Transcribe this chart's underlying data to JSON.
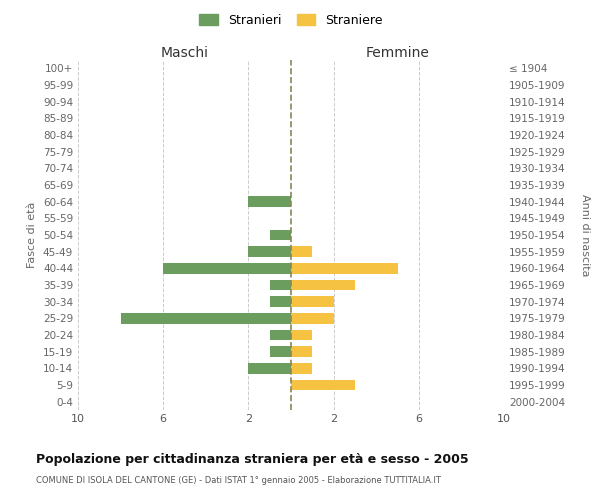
{
  "age_groups": [
    "100+",
    "95-99",
    "90-94",
    "85-89",
    "80-84",
    "75-79",
    "70-74",
    "65-69",
    "60-64",
    "55-59",
    "50-54",
    "45-49",
    "40-44",
    "35-39",
    "30-34",
    "25-29",
    "20-24",
    "15-19",
    "10-14",
    "5-9",
    "0-4"
  ],
  "birth_years": [
    "≤ 1904",
    "1905-1909",
    "1910-1914",
    "1915-1919",
    "1920-1924",
    "1925-1929",
    "1930-1934",
    "1935-1939",
    "1940-1944",
    "1945-1949",
    "1950-1954",
    "1955-1959",
    "1960-1964",
    "1965-1969",
    "1970-1974",
    "1975-1979",
    "1980-1984",
    "1985-1989",
    "1990-1994",
    "1995-1999",
    "2000-2004"
  ],
  "maschi": [
    0,
    0,
    0,
    0,
    0,
    0,
    0,
    0,
    2,
    0,
    1,
    2,
    6,
    1,
    1,
    8,
    1,
    1,
    2,
    0,
    0
  ],
  "femmine": [
    0,
    0,
    0,
    0,
    0,
    0,
    0,
    0,
    0,
    0,
    0,
    1,
    5,
    3,
    2,
    2,
    1,
    1,
    1,
    3,
    0
  ],
  "color_maschi": "#6b9e5e",
  "color_femmine": "#f5c242",
  "title": "Popolazione per cittadinanza straniera per età e sesso - 2005",
  "subtitle": "COMUNE DI ISOLA DEL CANTONE (GE) - Dati ISTAT 1° gennaio 2005 - Elaborazione TUTTITALIA.IT",
  "ylabel_left": "Fasce di età",
  "ylabel_right": "Anni di nascita",
  "legend_maschi": "Stranieri",
  "legend_femmine": "Straniere",
  "xlabel_maschi": "Maschi",
  "xlabel_femmine": "Femmine",
  "xlim": 10,
  "bg_color": "#ffffff",
  "grid_color": "#cccccc",
  "dashed_line_color": "#888855",
  "bar_height": 0.65
}
